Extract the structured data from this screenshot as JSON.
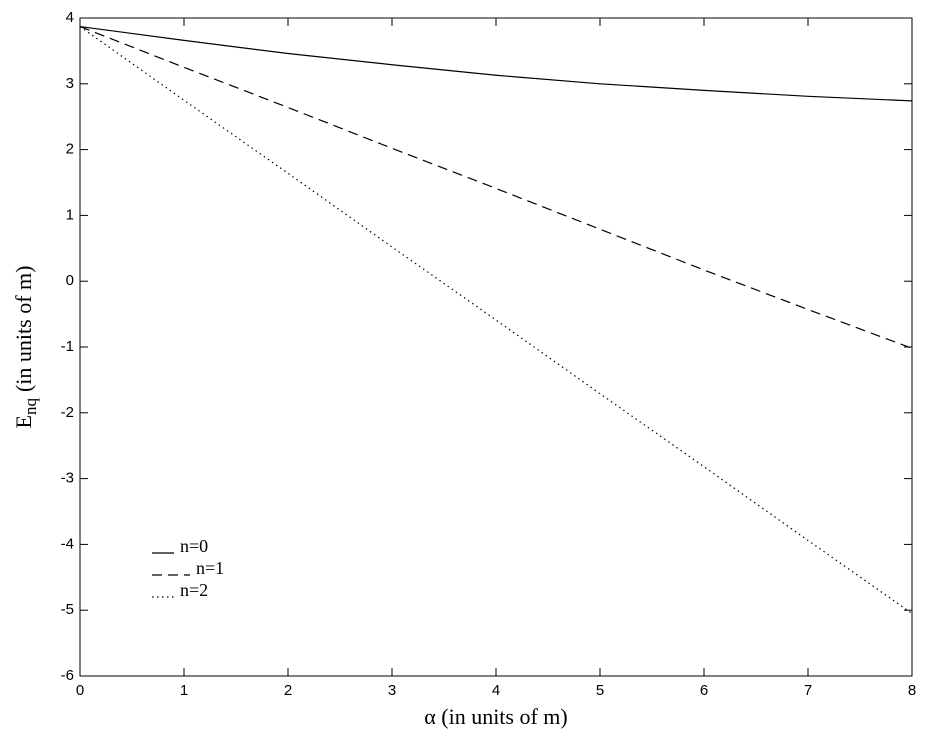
{
  "chart_data": {
    "type": "line",
    "xlabel": "α (in units of m)",
    "ylabel": {
      "main": "E",
      "sub": "nq",
      "rest": "(in units of m)"
    },
    "x": [
      0,
      1,
      2,
      3,
      4,
      5,
      6,
      7,
      8
    ],
    "series": [
      {
        "name": "n=0",
        "color": "#000000",
        "style": "solid",
        "values": [
          3.87,
          3.66,
          3.46,
          3.29,
          3.13,
          3.0,
          2.9,
          2.81,
          2.74
        ]
      },
      {
        "name": "n=1",
        "color": "#000000",
        "style": "dashed",
        "values": [
          3.87,
          3.25,
          2.64,
          2.02,
          1.41,
          0.79,
          0.17,
          -0.43,
          -1.02
        ]
      },
      {
        "name": "n=2",
        "color": "#000000",
        "style": "dotted",
        "values": [
          3.87,
          2.75,
          1.64,
          0.52,
          -0.59,
          -1.71,
          -2.82,
          -3.94,
          -5.05
        ]
      }
    ],
    "xlim": [
      0,
      8
    ],
    "xticks": [
      0,
      1,
      2,
      3,
      4,
      5,
      6,
      7,
      8
    ],
    "ylim": [
      -6,
      4
    ],
    "yticks": [
      -6,
      -5,
      -4,
      -3,
      -2,
      -1,
      0,
      1,
      2,
      3,
      4
    ],
    "grid": false,
    "legend": "lower left"
  }
}
